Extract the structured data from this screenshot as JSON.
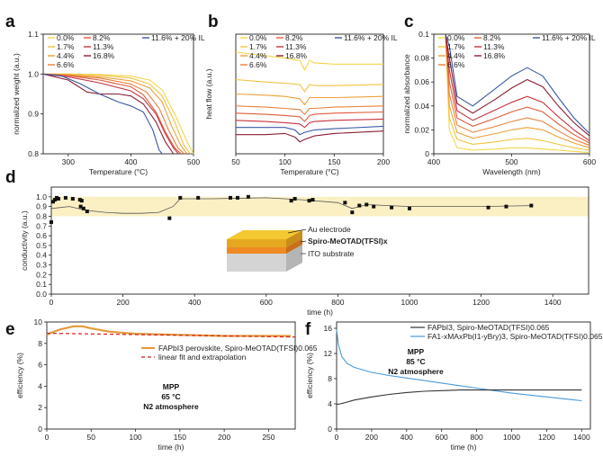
{
  "panels": {
    "a": {
      "label": "a"
    },
    "b": {
      "label": "b"
    },
    "c": {
      "label": "c"
    },
    "d": {
      "label": "d"
    },
    "e": {
      "label": "e"
    },
    "f": {
      "label": "f"
    }
  },
  "legend_abc": [
    {
      "name": "0.0%",
      "color": "#f2d64a"
    },
    {
      "name": "1.7%",
      "color": "#f0c33e"
    },
    {
      "name": "4.4%",
      "color": "#eca03c"
    },
    {
      "name": "6.6%",
      "color": "#e7813c"
    },
    {
      "name": "8.2%",
      "color": "#df5a3c"
    },
    {
      "name": "11.3%",
      "color": "#c8323e"
    },
    {
      "name": "16.8%",
      "color": "#8a1f33"
    },
    {
      "name": "11.6% + 20% IL",
      "color": "#3b58a6"
    }
  ],
  "diagram_d": {
    "layer1": "Au electrode",
    "layer2": "Spiro-MeOTAD(TFSI)x",
    "layer3": "ITO substrate"
  },
  "chart_data": [
    {
      "id": "a",
      "type": "line",
      "xlabel": "Temperature (°C)",
      "ylabel": "normalized weight (a.u.)",
      "xlim": [
        260,
        500
      ],
      "ylim": [
        0.8,
        1.1
      ],
      "xticks": [
        300,
        400,
        500
      ],
      "yticks": [
        0.8,
        0.9,
        1.0,
        1.1
      ],
      "series": [
        {
          "name": "0.0%",
          "x": [
            260,
            300,
            350,
            400,
            430,
            450,
            470,
            490,
            500
          ],
          "y": [
            1.0,
            1.0,
            0.999,
            0.995,
            0.985,
            0.96,
            0.9,
            0.83,
            0.8
          ]
        },
        {
          "name": "1.7%",
          "x": [
            260,
            300,
            350,
            400,
            430,
            450,
            470,
            485,
            495
          ],
          "y": [
            1.0,
            1.0,
            0.997,
            0.99,
            0.975,
            0.945,
            0.88,
            0.82,
            0.8
          ]
        },
        {
          "name": "4.4%",
          "x": [
            260,
            300,
            350,
            400,
            430,
            450,
            465,
            480,
            490
          ],
          "y": [
            1.0,
            0.998,
            0.993,
            0.983,
            0.965,
            0.93,
            0.87,
            0.82,
            0.8
          ]
        },
        {
          "name": "6.6%",
          "x": [
            260,
            300,
            350,
            400,
            425,
            445,
            460,
            475,
            485
          ],
          "y": [
            1.0,
            0.997,
            0.99,
            0.975,
            0.955,
            0.915,
            0.86,
            0.815,
            0.8
          ]
        },
        {
          "name": "8.2%",
          "x": [
            260,
            300,
            350,
            400,
            420,
            440,
            455,
            470,
            480
          ],
          "y": [
            1.0,
            0.996,
            0.985,
            0.968,
            0.948,
            0.905,
            0.855,
            0.815,
            0.8
          ]
        },
        {
          "name": "11.3%",
          "x": [
            260,
            300,
            350,
            400,
            420,
            440,
            455,
            468,
            476
          ],
          "y": [
            1.0,
            0.993,
            0.978,
            0.958,
            0.938,
            0.9,
            0.85,
            0.815,
            0.8
          ]
        },
        {
          "name": "16.8%",
          "x": [
            260,
            300,
            330,
            350,
            380,
            400,
            420,
            440,
            455,
            468
          ],
          "y": [
            1.0,
            0.985,
            0.955,
            0.95,
            0.95,
            0.945,
            0.925,
            0.88,
            0.83,
            0.8
          ]
        },
        {
          "name": "11.6% + 20% IL",
          "x": [
            260,
            290,
            320,
            350,
            380,
            400,
            420,
            435,
            445,
            450
          ],
          "y": [
            1.0,
            0.995,
            0.975,
            0.95,
            0.93,
            0.92,
            0.905,
            0.86,
            0.81,
            0.8
          ]
        }
      ]
    },
    {
      "id": "b",
      "type": "line",
      "xlabel": "Temperature (°C)",
      "ylabel": "heat flow (a.u.)",
      "xlim": [
        50,
        200
      ],
      "ylim": [
        0,
        1
      ],
      "xticks": [
        50,
        100,
        150,
        200
      ],
      "yticks": [],
      "series": [
        {
          "name": "0.0%",
          "x": [
            50,
            80,
            100,
            115,
            120,
            125,
            130,
            150,
            200
          ],
          "y": [
            0.85,
            0.82,
            0.8,
            0.78,
            0.7,
            0.78,
            0.76,
            0.75,
            0.75
          ]
        },
        {
          "name": "1.7%",
          "x": [
            50,
            80,
            100,
            115,
            120,
            125,
            130,
            150,
            200
          ],
          "y": [
            0.62,
            0.6,
            0.59,
            0.58,
            0.52,
            0.58,
            0.57,
            0.57,
            0.58
          ]
        },
        {
          "name": "4.4%",
          "x": [
            50,
            80,
            100,
            115,
            120,
            125,
            130,
            150,
            200
          ],
          "y": [
            0.5,
            0.49,
            0.48,
            0.46,
            0.41,
            0.47,
            0.47,
            0.47,
            0.48
          ]
        },
        {
          "name": "6.6%",
          "x": [
            50,
            80,
            100,
            115,
            120,
            125,
            130,
            150,
            200
          ],
          "y": [
            0.4,
            0.39,
            0.38,
            0.37,
            0.33,
            0.38,
            0.38,
            0.39,
            0.4
          ]
        },
        {
          "name": "8.2%",
          "x": [
            50,
            80,
            100,
            115,
            120,
            125,
            130,
            150,
            200
          ],
          "y": [
            0.34,
            0.33,
            0.32,
            0.31,
            0.27,
            0.32,
            0.33,
            0.34,
            0.35
          ]
        },
        {
          "name": "11.3%",
          "x": [
            50,
            80,
            100,
            115,
            120,
            125,
            130,
            150,
            200
          ],
          "y": [
            0.28,
            0.27,
            0.26,
            0.25,
            0.22,
            0.26,
            0.27,
            0.28,
            0.29
          ]
        },
        {
          "name": "16.8%",
          "x": [
            50,
            80,
            100,
            110,
            115,
            120,
            130,
            150,
            200
          ],
          "y": [
            0.16,
            0.16,
            0.17,
            0.14,
            0.1,
            0.12,
            0.15,
            0.17,
            0.19
          ]
        },
        {
          "name": "11.6% + 20% IL",
          "x": [
            50,
            80,
            100,
            110,
            115,
            120,
            130,
            150,
            200
          ],
          "y": [
            0.22,
            0.22,
            0.22,
            0.2,
            0.16,
            0.18,
            0.2,
            0.21,
            0.23
          ]
        }
      ]
    },
    {
      "id": "c",
      "type": "line",
      "xlabel": "Wavelength (nm)",
      "ylabel": "normalized absorbance",
      "xlim": [
        400,
        600
      ],
      "ylim": [
        0,
        0.1
      ],
      "xticks": [
        400,
        500,
        600
      ],
      "yticks": [
        0.0,
        0.02,
        0.04,
        0.06,
        0.08,
        0.1
      ],
      "series": [
        {
          "name": "0.0%",
          "x": [
            415,
            420,
            430,
            450,
            480,
            500,
            520,
            540,
            560,
            580,
            600
          ],
          "y": [
            0.1,
            0.02,
            0.005,
            0.003,
            0.004,
            0.005,
            0.005,
            0.004,
            0.003,
            0.002,
            0.001
          ]
        },
        {
          "name": "1.7%",
          "x": [
            415,
            420,
            430,
            450,
            480,
            500,
            520,
            540,
            560,
            580,
            600
          ],
          "y": [
            0.1,
            0.03,
            0.012,
            0.008,
            0.01,
            0.012,
            0.013,
            0.011,
            0.008,
            0.005,
            0.003
          ]
        },
        {
          "name": "4.4%",
          "x": [
            415,
            420,
            430,
            450,
            480,
            500,
            520,
            540,
            560,
            580,
            600
          ],
          "y": [
            0.1,
            0.04,
            0.018,
            0.013,
            0.017,
            0.02,
            0.022,
            0.02,
            0.014,
            0.009,
            0.005
          ]
        },
        {
          "name": "6.6%",
          "x": [
            415,
            420,
            430,
            450,
            480,
            500,
            520,
            540,
            560,
            580,
            600
          ],
          "y": [
            0.1,
            0.05,
            0.024,
            0.018,
            0.023,
            0.027,
            0.03,
            0.027,
            0.019,
            0.012,
            0.007
          ]
        },
        {
          "name": "8.2%",
          "x": [
            415,
            420,
            430,
            450,
            480,
            500,
            520,
            540,
            560,
            580,
            600
          ],
          "y": [
            0.1,
            0.06,
            0.03,
            0.023,
            0.03,
            0.035,
            0.039,
            0.035,
            0.025,
            0.016,
            0.009
          ]
        },
        {
          "name": "11.3%",
          "x": [
            415,
            420,
            430,
            450,
            480,
            500,
            520,
            540,
            560,
            580,
            600
          ],
          "y": [
            0.1,
            0.07,
            0.036,
            0.028,
            0.037,
            0.043,
            0.048,
            0.043,
            0.031,
            0.02,
            0.011
          ]
        },
        {
          "name": "16.8%",
          "x": [
            415,
            420,
            430,
            450,
            480,
            500,
            520,
            540,
            560,
            580,
            600
          ],
          "y": [
            0.1,
            0.08,
            0.042,
            0.034,
            0.046,
            0.055,
            0.062,
            0.056,
            0.04,
            0.026,
            0.015
          ]
        },
        {
          "name": "11.6% + 20% IL",
          "x": [
            415,
            420,
            430,
            450,
            480,
            500,
            520,
            540,
            560,
            580,
            600
          ],
          "y": [
            0.1,
            0.09,
            0.048,
            0.04,
            0.055,
            0.065,
            0.072,
            0.065,
            0.047,
            0.03,
            0.017
          ]
        }
      ]
    },
    {
      "id": "d",
      "type": "scatter",
      "xlabel": "time (h)",
      "ylabel": "conductivity (a.u.)",
      "xlim": [
        0,
        1500
      ],
      "ylim": [
        0,
        1.1
      ],
      "xticks": [
        0,
        200,
        400,
        600,
        800,
        1000,
        1200,
        1400
      ],
      "yticks": [
        0.0,
        0.1,
        0.2,
        0.3,
        0.4,
        0.5,
        0.6,
        0.7,
        0.8,
        0.9,
        1.0
      ],
      "band": [
        0.8,
        1.0
      ],
      "points": {
        "x": [
          0,
          5,
          10,
          15,
          20,
          40,
          60,
          80,
          82,
          85,
          90,
          100,
          330,
          360,
          410,
          500,
          520,
          550,
          670,
          680,
          720,
          730,
          820,
          840,
          860,
          880,
          900,
          950,
          1000,
          1220,
          1270,
          1340
        ],
        "y": [
          0.74,
          0.95,
          0.97,
          0.99,
          0.98,
          0.99,
          0.98,
          0.97,
          0.9,
          0.96,
          0.88,
          0.85,
          0.78,
          0.99,
          0.99,
          0.99,
          0.99,
          1.0,
          0.96,
          0.98,
          0.96,
          0.97,
          0.94,
          0.84,
          0.91,
          0.92,
          0.9,
          0.89,
          0.88,
          0.89,
          0.9,
          0.91
        ]
      },
      "trend": {
        "x": [
          0,
          50,
          100,
          150,
          200,
          250,
          300,
          340,
          360,
          450,
          600,
          700,
          800,
          840,
          880,
          1000,
          1200,
          1340
        ],
        "y": [
          0.88,
          0.9,
          0.86,
          0.84,
          0.83,
          0.83,
          0.84,
          0.9,
          0.98,
          0.98,
          0.99,
          0.97,
          0.94,
          0.88,
          0.92,
          0.9,
          0.9,
          0.91
        ]
      }
    },
    {
      "id": "e",
      "type": "line",
      "xlabel": "time (h)",
      "ylabel": "efficiency (%)",
      "xlim": [
        0,
        280
      ],
      "ylim": [
        0,
        10
      ],
      "xticks": [
        0,
        50,
        100,
        150,
        200,
        250
      ],
      "yticks": [
        0,
        2,
        4,
        6,
        8,
        10
      ],
      "series": [
        {
          "name": "FAPbI3 perovskite, Spiro-MeOTAD(TFSI)0.065",
          "x": [
            0,
            5,
            15,
            30,
            40,
            50,
            70,
            100,
            150,
            200,
            250,
            275
          ],
          "y": [
            8.8,
            9.0,
            9.3,
            9.6,
            9.6,
            9.4,
            9.1,
            8.9,
            8.8,
            8.7,
            8.7,
            8.7
          ]
        },
        {
          "name": "linear fit and extrapolation",
          "x": [
            0,
            280
          ],
          "y": [
            8.95,
            8.6
          ]
        }
      ],
      "annotation": [
        "MPP",
        "65 °C",
        "N2 atmosphere"
      ]
    },
    {
      "id": "f",
      "type": "line",
      "xlabel": "time (h)",
      "ylabel": "efficiency (%)",
      "xlim": [
        0,
        1450
      ],
      "ylim": [
        0,
        17
      ],
      "xticks": [
        0,
        200,
        400,
        600,
        800,
        1000,
        1200,
        1400
      ],
      "yticks": [
        0,
        4,
        8,
        12,
        16
      ],
      "series": [
        {
          "name": "FAPbI3, Spiro-MeOTAD(TFSI)0.065",
          "x": [
            0,
            20,
            50,
            100,
            200,
            300,
            400,
            500,
            600,
            700,
            800,
            900,
            1000,
            1100,
            1200,
            1300,
            1400
          ],
          "y": [
            3.9,
            4.0,
            4.2,
            4.6,
            5.1,
            5.5,
            5.8,
            6.0,
            6.1,
            6.2,
            6.2,
            6.2,
            6.2,
            6.2,
            6.2,
            6.2,
            6.2
          ]
        },
        {
          "name": "FA1-xMAxPb(I1-yBry)3, Spiro-MeOTAD(TFSI)0.065",
          "x": [
            0,
            10,
            30,
            60,
            100,
            200,
            300,
            400,
            500,
            600,
            700,
            800,
            900,
            1000,
            1100,
            1200,
            1300,
            1400
          ],
          "y": [
            15.8,
            13.5,
            11.5,
            10.4,
            9.8,
            9.0,
            8.5,
            8.1,
            7.7,
            7.3,
            6.9,
            6.5,
            6.1,
            5.7,
            5.4,
            5.1,
            4.8,
            4.5
          ]
        }
      ],
      "annotation": [
        "MPP",
        "85 °C",
        "N2 atmosphere"
      ]
    }
  ]
}
